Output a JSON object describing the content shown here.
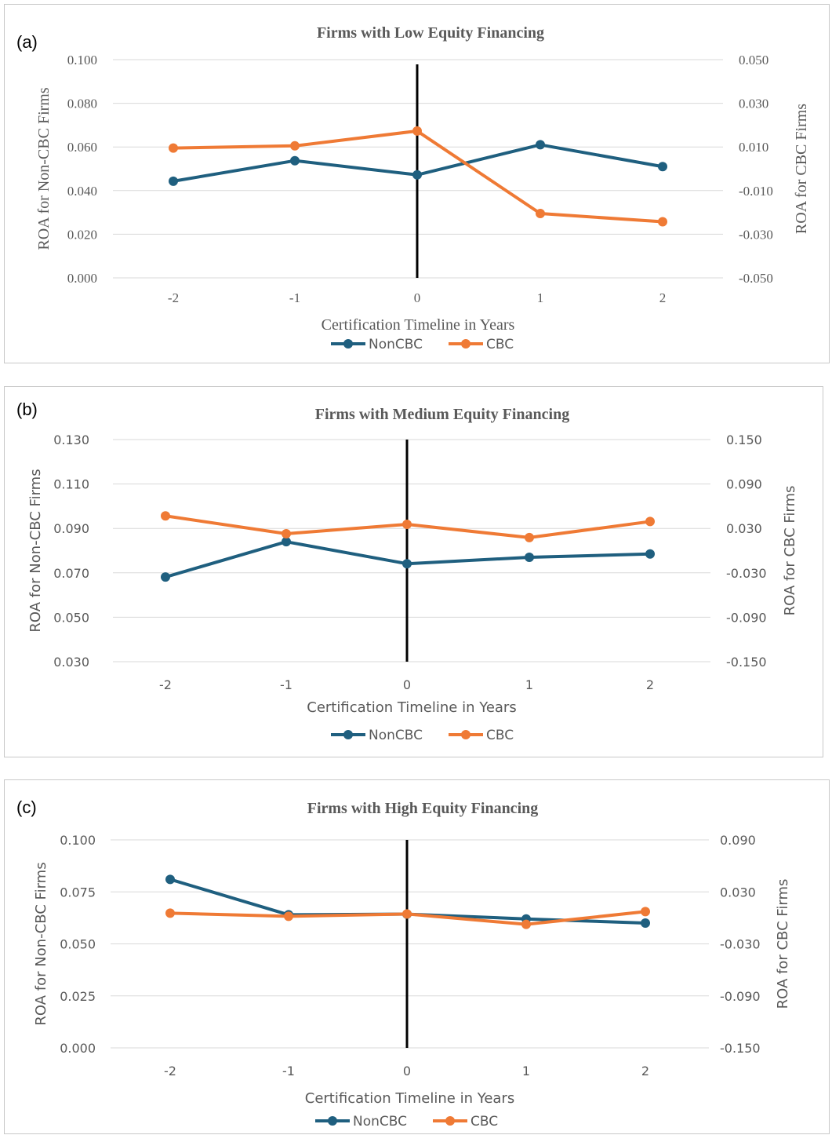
{
  "chart_data": [
    {
      "type": "line",
      "panel_label": "(a)",
      "title": "Firms with Low Equity Financing",
      "xlabel": "Certification Timeline in Years",
      "ylabel_left": "ROA for Non-CBC Firms",
      "ylabel_right": "ROA for CBC Firms",
      "categories": [
        "-2",
        "-1",
        "0",
        "1",
        "2"
      ],
      "ylim_left": [
        0.0,
        0.1
      ],
      "ylim_right": [
        -0.05,
        0.05
      ],
      "yticks_left": [
        "0.100",
        "0.080",
        "0.060",
        "0.040",
        "0.020",
        "0.000"
      ],
      "yticks_right": [
        "0.050",
        "0.030",
        "0.010",
        "-0.010",
        "-0.030",
        "-0.050"
      ],
      "vline_at": "0",
      "legend_position": "bottom",
      "series": [
        {
          "name": "NonCBC",
          "axis": "left",
          "color": "#1f5f7f",
          "values": [
            0.0443,
            0.0537,
            0.0472,
            0.061,
            0.051
          ]
        },
        {
          "name": "CBC",
          "axis": "right",
          "color": "#ef7a35",
          "values": [
            0.0095,
            0.0105,
            0.0173,
            -0.0205,
            -0.0243
          ]
        }
      ]
    },
    {
      "type": "line",
      "panel_label": "(b)",
      "title": "Firms with Medium Equity Financing",
      "xlabel": "Certification Timeline in Years",
      "ylabel_left": "ROA for Non-CBC Firms",
      "ylabel_right": "ROA for CBC Firms",
      "categories": [
        "-2",
        "-1",
        "0",
        "1",
        "2"
      ],
      "ylim_left": [
        0.03,
        0.13
      ],
      "ylim_right": [
        -0.15,
        0.15
      ],
      "yticks_left": [
        "0.130",
        "0.110",
        "0.090",
        "0.070",
        "0.050",
        "0.030"
      ],
      "yticks_right": [
        "0.150",
        "0.090",
        "0.030",
        "-0.030",
        "-0.090",
        "-0.150"
      ],
      "vline_at": "0",
      "legend_position": "bottom",
      "series": [
        {
          "name": "NonCBC",
          "axis": "left",
          "color": "#1f5f7f",
          "values": [
            0.0681,
            0.084,
            0.0741,
            0.077,
            0.0785
          ]
        },
        {
          "name": "CBC",
          "axis": "right",
          "color": "#ef7a35",
          "values": [
            0.0469,
            0.0228,
            0.0355,
            0.0176,
            0.0393
          ]
        }
      ]
    },
    {
      "type": "line",
      "panel_label": "(c)",
      "title": "Firms with High Equity Financing",
      "xlabel": "Certification Timeline in Years",
      "ylabel_left": "ROA for Non-CBC Firms",
      "ylabel_right": "ROA for CBC Firms",
      "categories": [
        "-2",
        "-1",
        "0",
        "1",
        "2"
      ],
      "ylim_left": [
        0.0,
        0.1
      ],
      "ylim_right": [
        -0.15,
        0.09
      ],
      "yticks_left": [
        "0.100",
        "0.075",
        "0.050",
        "0.025",
        "0.000"
      ],
      "yticks_right": [
        "0.090",
        "0.030",
        "-0.030",
        "-0.090",
        "-0.150"
      ],
      "vline_at": "0",
      "legend_position": "bottom",
      "series": [
        {
          "name": "NonCBC",
          "axis": "left",
          "color": "#1f5f7f",
          "values": [
            0.081,
            0.064,
            0.0643,
            0.062,
            0.06
          ]
        },
        {
          "name": "CBC",
          "axis": "right",
          "color": "#ef7a35",
          "values": [
            0.0054,
            0.0018,
            0.0045,
            -0.0075,
            0.0072
          ]
        }
      ]
    }
  ]
}
